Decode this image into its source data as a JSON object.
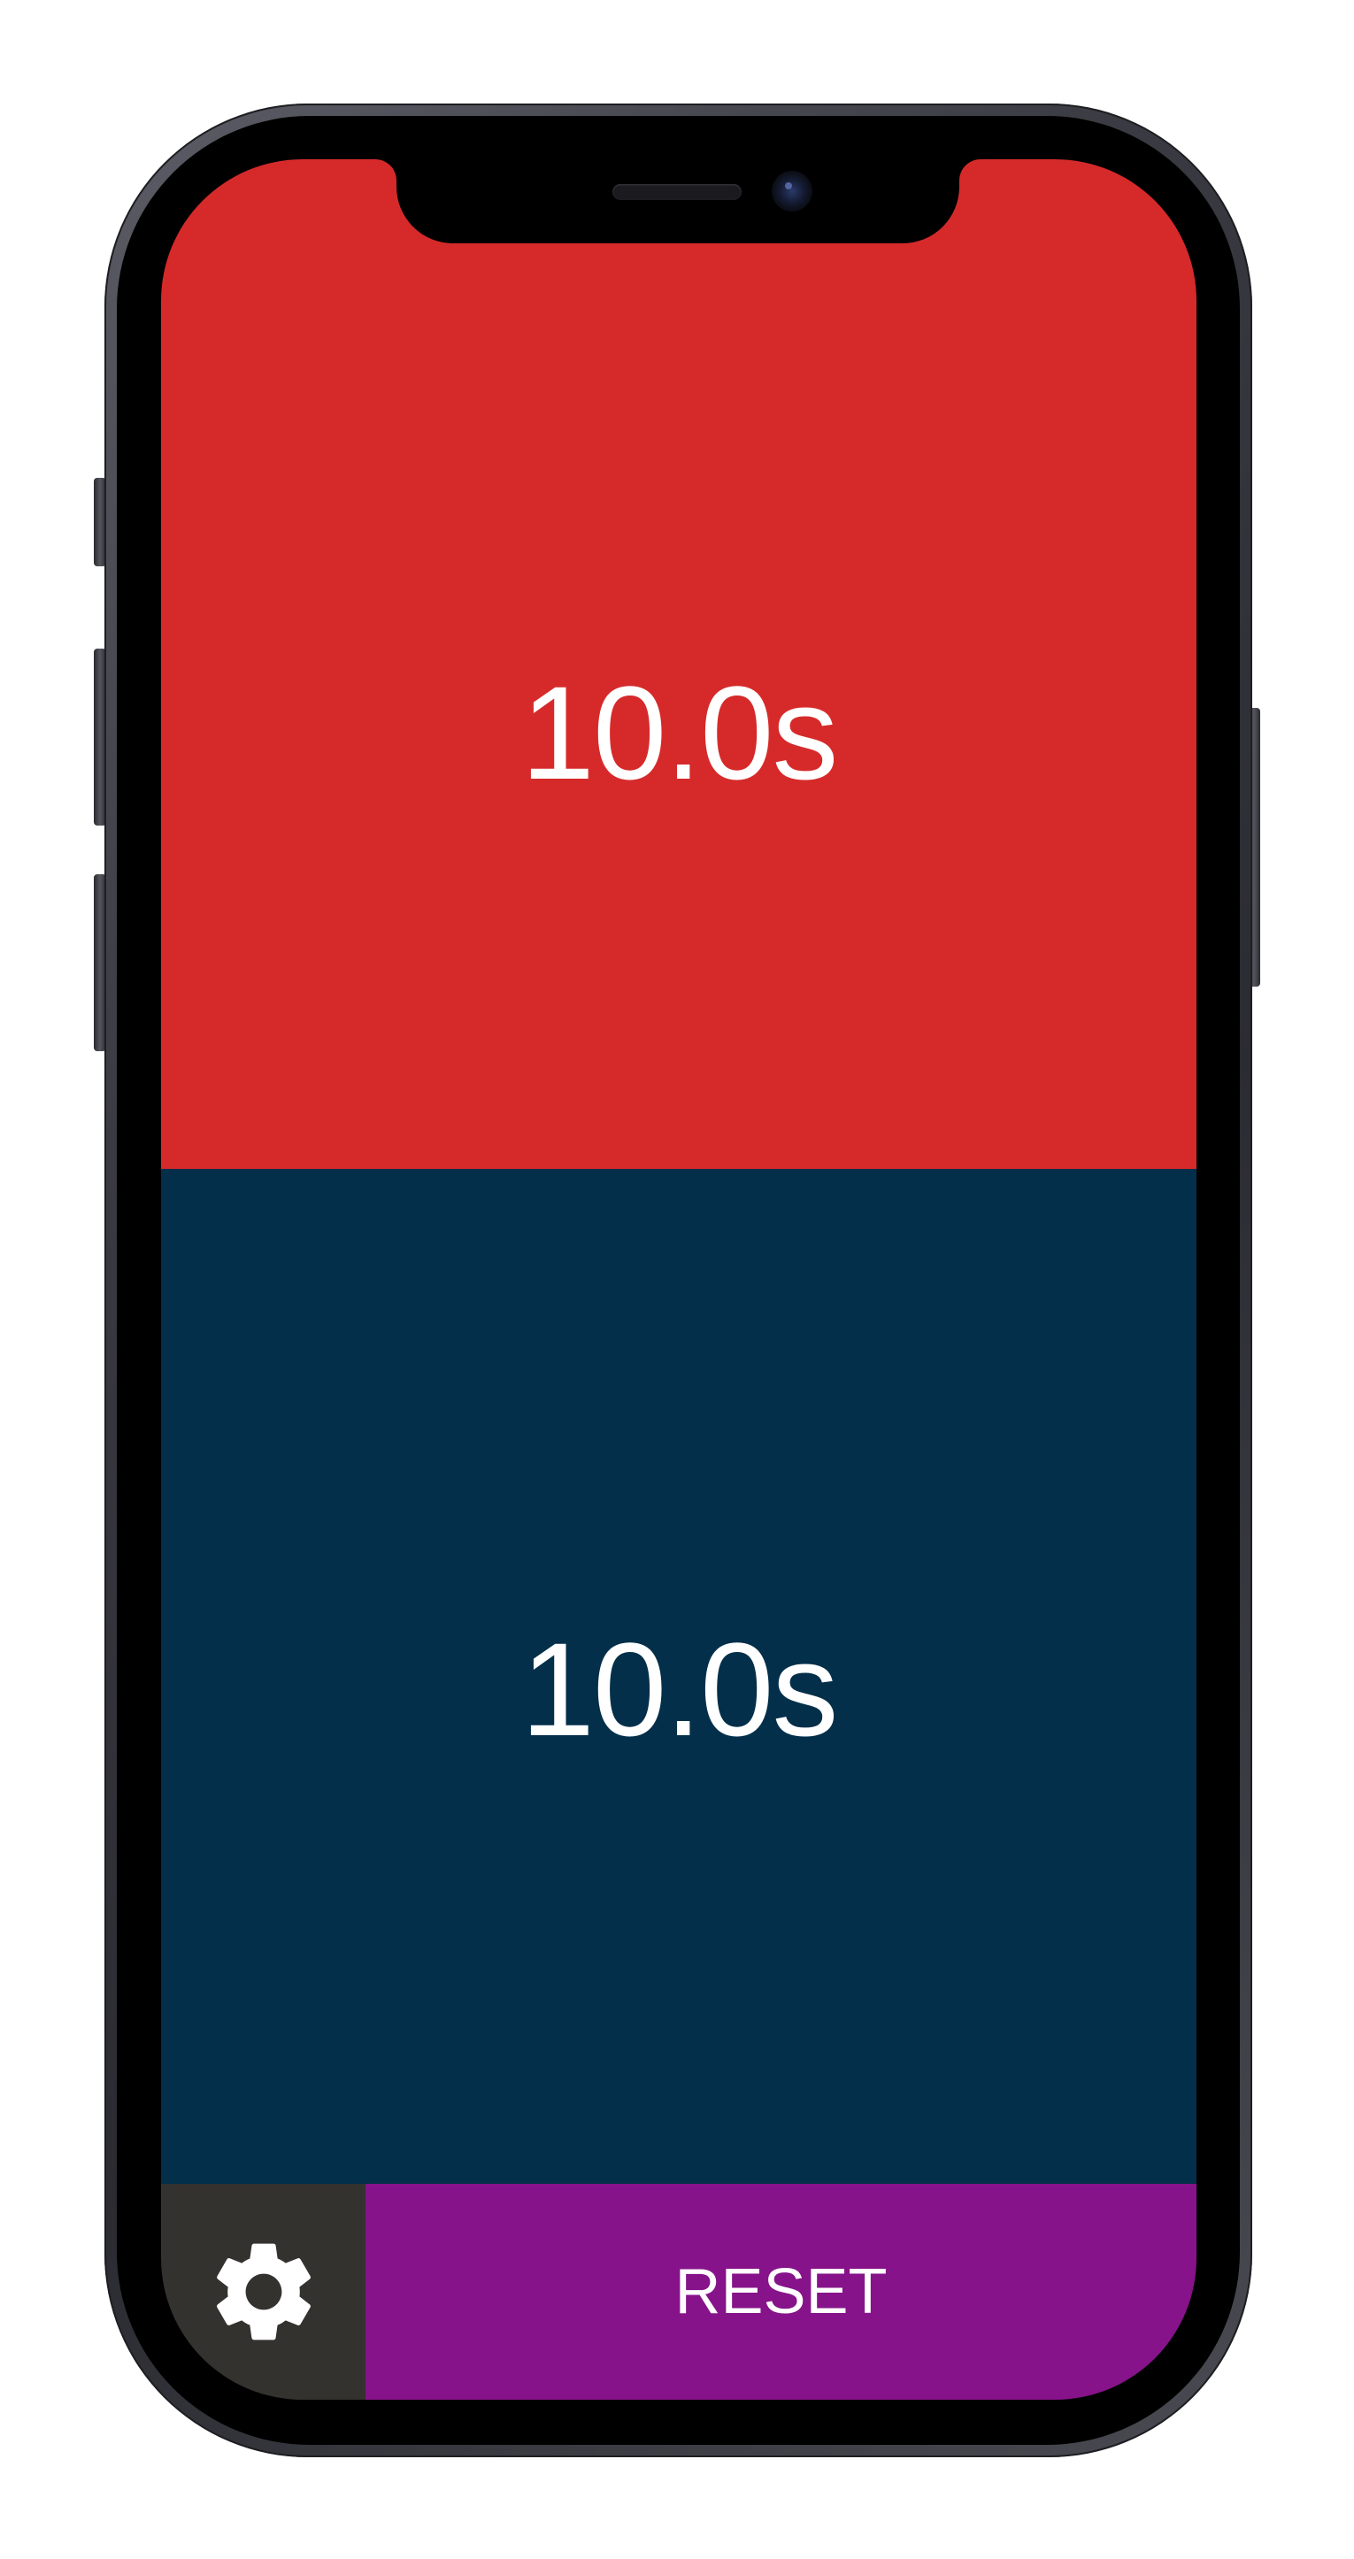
{
  "timers": {
    "top": {
      "label": "10.0s",
      "color": "#d62a2a"
    },
    "bottom": {
      "label": "10.0s",
      "color": "#032f4a"
    }
  },
  "controls": {
    "settings_icon": "gear-icon",
    "settings_color": "#33322f",
    "reset_label": "RESET",
    "reset_color": "#86138a"
  }
}
